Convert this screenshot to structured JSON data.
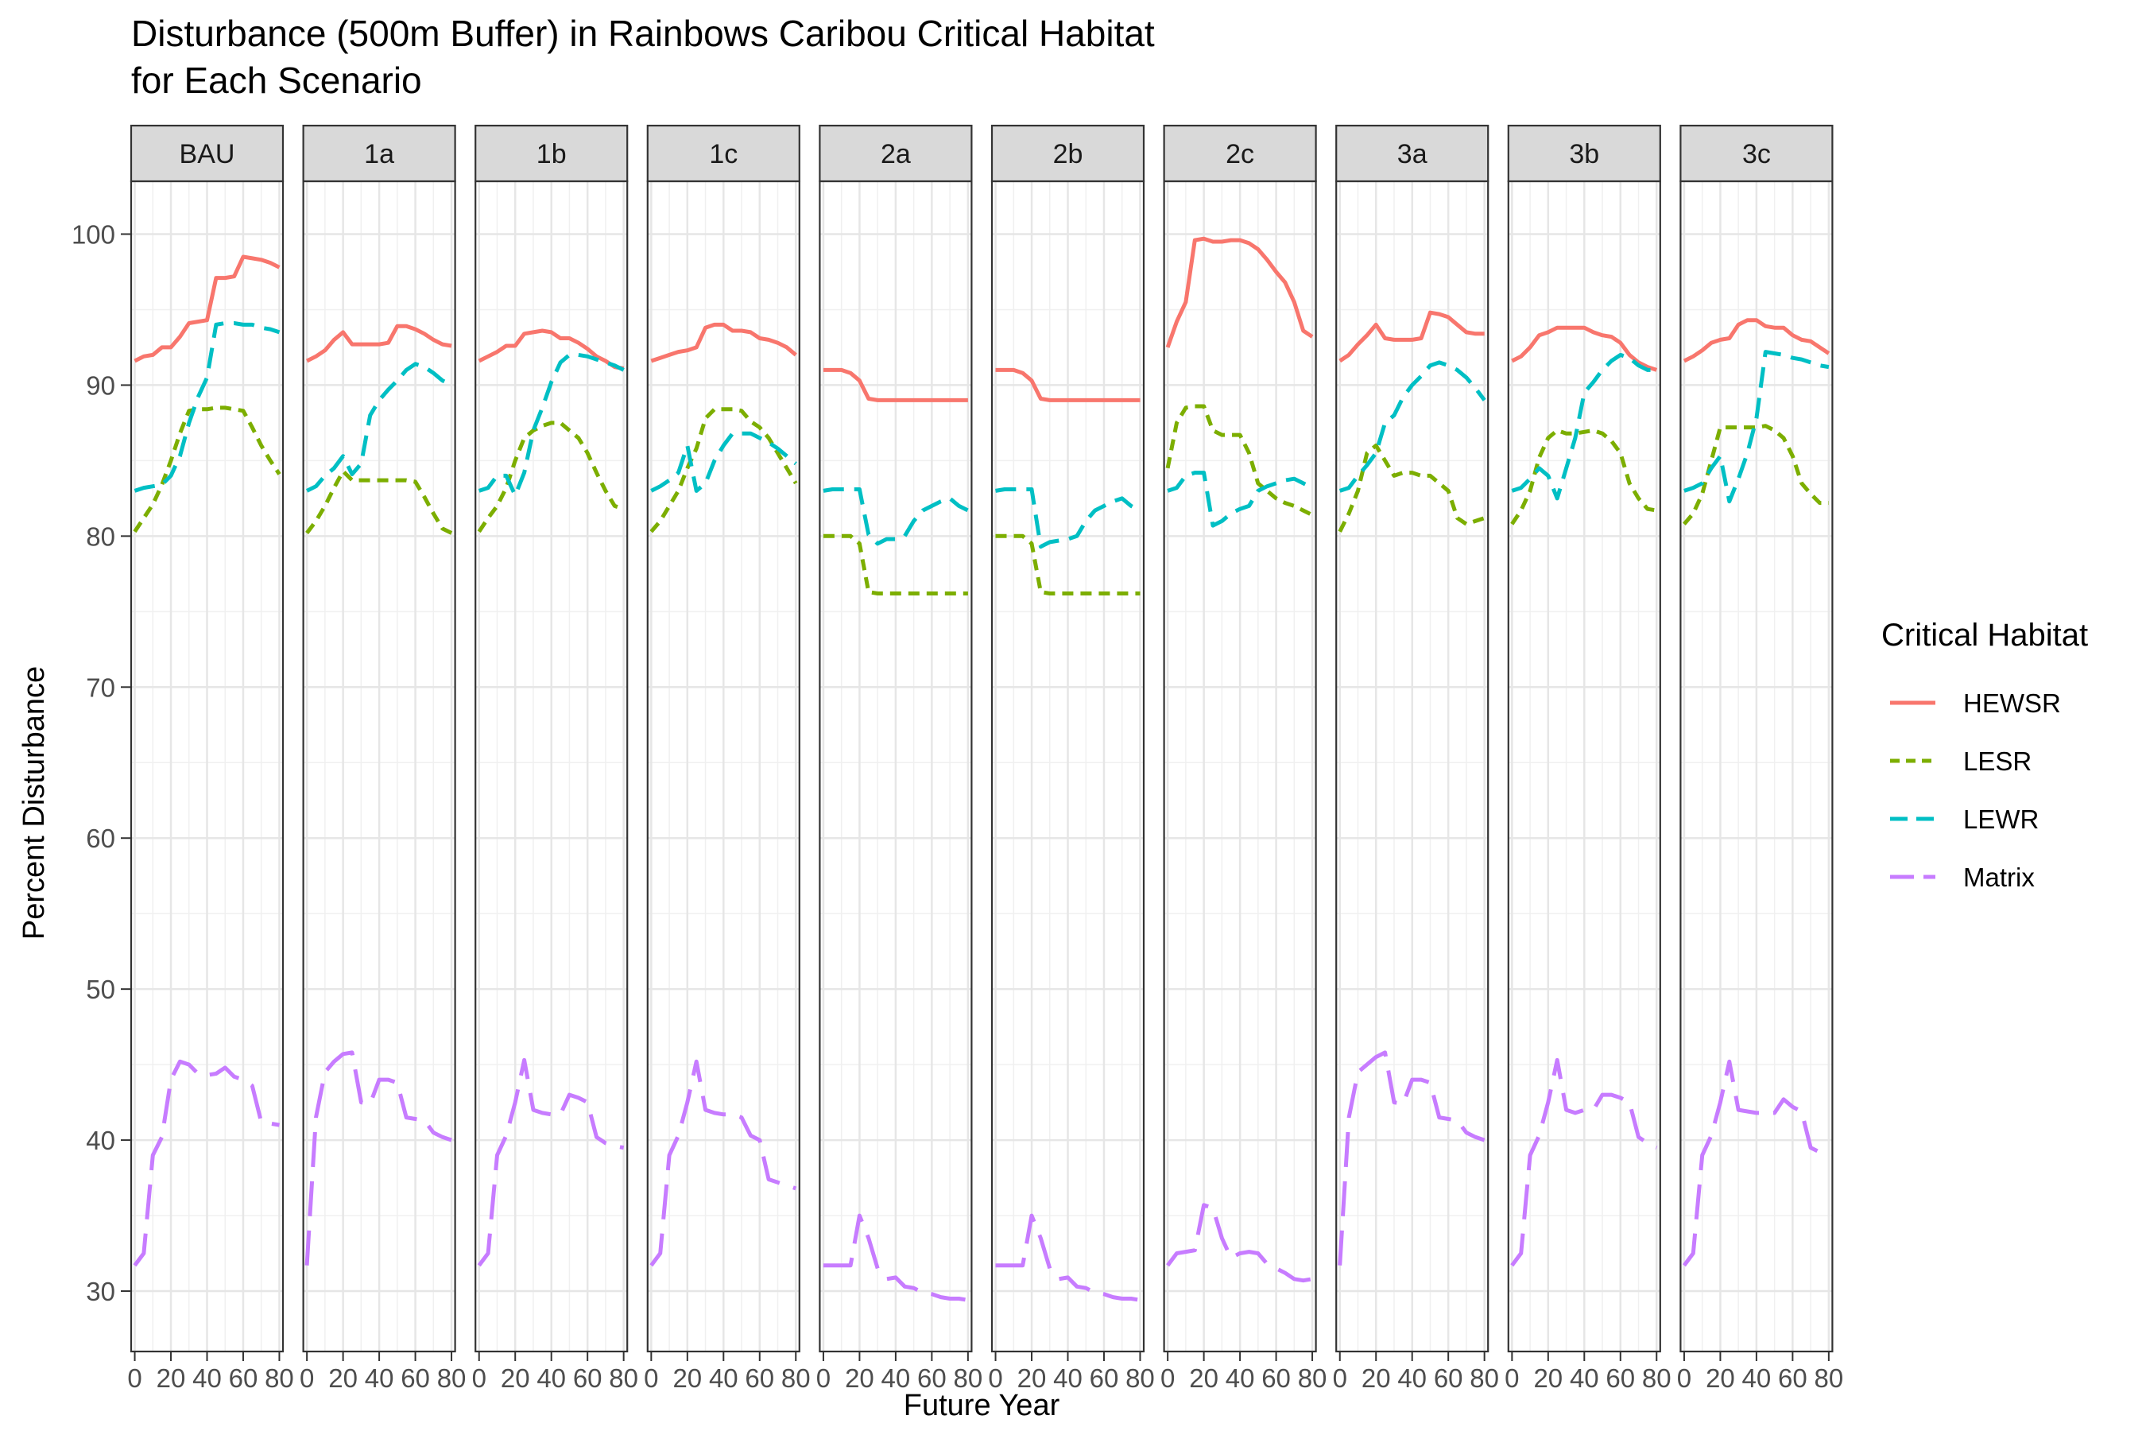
{
  "chart_data": {
    "type": "line",
    "title": "Disturbance (500m Buffer) in Rainbows Caribou Critical Habitat",
    "subtitle": "for Each Scenario",
    "xlabel": "Future Year",
    "ylabel": "Percent Disturbance",
    "xlim": [
      -2,
      82
    ],
    "ylim": [
      26,
      103.5
    ],
    "xticks": [
      0,
      20,
      40,
      60,
      80
    ],
    "yticks": [
      30,
      40,
      50,
      60,
      70,
      80,
      90,
      100
    ],
    "grid": true,
    "legend": {
      "title": "Critical Habitat",
      "position": "right",
      "entries": [
        {
          "name": "HEWSR",
          "color": "#F8766D",
          "dash": "solid"
        },
        {
          "name": "LESR",
          "color": "#7CAE00",
          "dash": "dotted"
        },
        {
          "name": "LEWR",
          "color": "#00BFC4",
          "dash": "dashed"
        },
        {
          "name": "Matrix",
          "color": "#C77CFF",
          "dash": "longdash"
        }
      ]
    },
    "x": [
      0,
      5,
      10,
      15,
      20,
      25,
      30,
      35,
      40,
      45,
      50,
      55,
      60,
      65,
      70,
      75,
      80
    ],
    "panels": [
      {
        "name": "BAU",
        "series": [
          {
            "name": "HEWSR",
            "values": [
              91.6,
              91.9,
              92.0,
              92.5,
              92.5,
              93.2,
              94.1,
              94.2,
              94.3,
              97.1,
              97.1,
              97.2,
              98.5,
              98.4,
              98.3,
              98.1,
              97.8
            ]
          },
          {
            "name": "LESR",
            "values": [
              80.3,
              81.2,
              82.1,
              83.4,
              85.0,
              86.8,
              88.3,
              88.4,
              88.4,
              88.5,
              88.5,
              88.4,
              88.3,
              87.2,
              86.0,
              85.0,
              84.1
            ]
          },
          {
            "name": "LEWR",
            "values": [
              83.0,
              83.2,
              83.3,
              83.4,
              84.0,
              85.3,
              87.5,
              89.2,
              90.5,
              94.0,
              94.1,
              94.1,
              94.0,
              94.0,
              93.8,
              93.7,
              93.5
            ]
          },
          {
            "name": "Matrix",
            "values": [
              31.7,
              32.5,
              39.0,
              40.2,
              44.0,
              45.2,
              45.0,
              44.4,
              44.3,
              44.4,
              44.8,
              44.2,
              44.0,
              43.6,
              41.2,
              41.1,
              41.0
            ]
          }
        ]
      },
      {
        "name": "1a",
        "series": [
          {
            "name": "HEWSR",
            "values": [
              91.6,
              91.9,
              92.3,
              93.0,
              93.5,
              92.7,
              92.7,
              92.7,
              92.7,
              92.8,
              93.9,
              93.9,
              93.7,
              93.4,
              93.0,
              92.7,
              92.6
            ]
          },
          {
            "name": "LESR",
            "values": [
              80.2,
              81.0,
              82.0,
              83.2,
              84.3,
              83.7,
              83.7,
              83.7,
              83.7,
              83.7,
              83.7,
              83.7,
              83.6,
              82.6,
              81.5,
              80.5,
              80.2
            ]
          },
          {
            "name": "LEWR",
            "values": [
              83.0,
              83.3,
              84.0,
              84.5,
              85.3,
              84.1,
              84.8,
              88.0,
              89.0,
              89.7,
              90.3,
              91.0,
              91.4,
              91.2,
              90.8,
              90.3,
              90.0
            ]
          },
          {
            "name": "Matrix",
            "values": [
              31.7,
              41.5,
              44.5,
              45.2,
              45.7,
              45.8,
              42.5,
              42.4,
              44.0,
              44.0,
              43.8,
              41.5,
              41.4,
              41.3,
              40.5,
              40.2,
              40.0
            ]
          }
        ]
      },
      {
        "name": "1b",
        "series": [
          {
            "name": "HEWSR",
            "values": [
              91.6,
              91.9,
              92.2,
              92.6,
              92.6,
              93.4,
              93.5,
              93.6,
              93.5,
              93.1,
              93.1,
              92.8,
              92.4,
              91.9,
              91.6,
              91.2,
              91.1
            ]
          },
          {
            "name": "LESR",
            "values": [
              80.3,
              81.2,
              82.0,
              83.2,
              85.0,
              86.5,
              87.0,
              87.3,
              87.5,
              87.5,
              87.0,
              86.5,
              85.5,
              84.2,
              83.0,
              82.0,
              81.8
            ]
          },
          {
            "name": "LEWR",
            "values": [
              83.0,
              83.2,
              84.0,
              84.0,
              82.7,
              84.2,
              87.0,
              88.5,
              90.2,
              91.5,
              92.0,
              92.0,
              91.9,
              91.7,
              91.5,
              91.3,
              91.0
            ]
          },
          {
            "name": "Matrix",
            "values": [
              31.7,
              32.5,
              39.0,
              40.3,
              42.5,
              45.3,
              42.0,
              41.8,
              41.7,
              41.7,
              43.0,
              42.8,
              42.5,
              40.2,
              39.8,
              39.6,
              39.5
            ]
          }
        ]
      },
      {
        "name": "1c",
        "series": [
          {
            "name": "HEWSR",
            "values": [
              91.6,
              91.8,
              92.0,
              92.2,
              92.3,
              92.5,
              93.8,
              94.0,
              94.0,
              93.6,
              93.6,
              93.5,
              93.1,
              93.0,
              92.8,
              92.5,
              92.0
            ]
          },
          {
            "name": "LESR",
            "values": [
              80.3,
              81.0,
              82.0,
              83.0,
              84.5,
              85.8,
              87.8,
              88.4,
              88.4,
              88.4,
              88.3,
              87.6,
              87.2,
              86.5,
              85.5,
              84.5,
              83.5
            ]
          },
          {
            "name": "LEWR",
            "values": [
              83.0,
              83.3,
              83.7,
              84.2,
              86.0,
              83.0,
              83.5,
              85.0,
              86.0,
              86.8,
              86.8,
              86.8,
              86.5,
              86.2,
              85.8,
              85.3,
              84.8
            ]
          },
          {
            "name": "Matrix",
            "values": [
              31.7,
              32.5,
              39.0,
              40.3,
              42.5,
              45.2,
              42.0,
              41.8,
              41.7,
              41.7,
              41.5,
              40.3,
              40.0,
              37.4,
              37.2,
              37.0,
              36.8
            ]
          }
        ]
      },
      {
        "name": "2a",
        "series": [
          {
            "name": "HEWSR",
            "values": [
              91.0,
              91.0,
              91.0,
              90.8,
              90.3,
              89.1,
              89.0,
              89.0,
              89.0,
              89.0,
              89.0,
              89.0,
              89.0,
              89.0,
              89.0,
              89.0,
              89.0
            ]
          },
          {
            "name": "LESR",
            "values": [
              80.0,
              80.0,
              80.0,
              80.0,
              79.5,
              76.3,
              76.2,
              76.2,
              76.2,
              76.2,
              76.2,
              76.2,
              76.2,
              76.2,
              76.2,
              76.2,
              76.2
            ]
          },
          {
            "name": "LEWR",
            "values": [
              83.0,
              83.1,
              83.1,
              83.1,
              83.1,
              80.1,
              79.5,
              79.8,
              79.8,
              80.0,
              81.0,
              81.7,
              82.0,
              82.3,
              82.5,
              82.0,
              81.7
            ]
          },
          {
            "name": "Matrix",
            "values": [
              31.7,
              31.7,
              31.7,
              31.7,
              35.0,
              33.5,
              31.5,
              30.8,
              30.9,
              30.3,
              30.2,
              29.9,
              29.8,
              29.6,
              29.5,
              29.5,
              29.4
            ]
          }
        ]
      },
      {
        "name": "2b",
        "series": [
          {
            "name": "HEWSR",
            "values": [
              91.0,
              91.0,
              91.0,
              90.8,
              90.3,
              89.1,
              89.0,
              89.0,
              89.0,
              89.0,
              89.0,
              89.0,
              89.0,
              89.0,
              89.0,
              89.0,
              89.0
            ]
          },
          {
            "name": "LESR",
            "values": [
              80.0,
              80.0,
              80.0,
              80.0,
              79.5,
              76.3,
              76.2,
              76.2,
              76.2,
              76.2,
              76.2,
              76.2,
              76.2,
              76.2,
              76.2,
              76.2,
              76.2
            ]
          },
          {
            "name": "LEWR",
            "values": [
              83.0,
              83.1,
              83.1,
              83.1,
              83.1,
              79.3,
              79.6,
              79.7,
              79.8,
              80.0,
              81.0,
              81.7,
              82.0,
              82.3,
              82.5,
              82.0,
              81.7
            ]
          },
          {
            "name": "Matrix",
            "values": [
              31.7,
              31.7,
              31.7,
              31.7,
              35.0,
              33.5,
              31.5,
              30.8,
              30.9,
              30.3,
              30.2,
              29.9,
              29.8,
              29.6,
              29.5,
              29.5,
              29.4
            ]
          }
        ]
      },
      {
        "name": "2c",
        "series": [
          {
            "name": "HEWSR",
            "values": [
              92.5,
              94.2,
              95.5,
              99.6,
              99.7,
              99.5,
              99.5,
              99.6,
              99.6,
              99.4,
              99.0,
              98.3,
              97.5,
              96.8,
              95.5,
              93.6,
              93.2
            ]
          },
          {
            "name": "LESR",
            "values": [
              84.5,
              87.5,
              88.5,
              88.6,
              88.6,
              87.0,
              86.7,
              86.7,
              86.7,
              85.5,
              83.5,
              83.0,
              82.5,
              82.2,
              82.0,
              81.7,
              81.4
            ]
          },
          {
            "name": "LEWR",
            "values": [
              83.0,
              83.2,
              84.0,
              84.2,
              84.2,
              80.7,
              81.0,
              81.5,
              81.8,
              82.0,
              83.0,
              83.3,
              83.5,
              83.7,
              83.8,
              83.5,
              83.2
            ]
          },
          {
            "name": "Matrix",
            "values": [
              31.7,
              32.5,
              32.6,
              32.7,
              35.7,
              35.5,
              33.5,
              32.2,
              32.5,
              32.6,
              32.5,
              31.8,
              31.5,
              31.2,
              30.8,
              30.7,
              30.8
            ]
          }
        ]
      },
      {
        "name": "3a",
        "series": [
          {
            "name": "HEWSR",
            "values": [
              91.6,
              92.0,
              92.7,
              93.3,
              94.0,
              93.1,
              93.0,
              93.0,
              93.0,
              93.1,
              94.8,
              94.7,
              94.5,
              94.0,
              93.5,
              93.4,
              93.4
            ]
          },
          {
            "name": "LESR",
            "values": [
              80.3,
              81.5,
              83.0,
              85.5,
              86.0,
              85.0,
              84.0,
              84.2,
              84.2,
              84.0,
              84.0,
              83.5,
              83.0,
              81.2,
              80.8,
              81.0,
              81.2
            ]
          },
          {
            "name": "LEWR",
            "values": [
              83.0,
              83.2,
              84.0,
              84.7,
              85.5,
              87.5,
              88.0,
              89.2,
              90.0,
              90.6,
              91.3,
              91.5,
              91.3,
              91.0,
              90.5,
              89.8,
              89.0
            ]
          },
          {
            "name": "Matrix",
            "values": [
              31.7,
              41.5,
              44.5,
              45.0,
              45.5,
              45.8,
              42.5,
              42.4,
              44.0,
              44.0,
              43.8,
              41.5,
              41.4,
              41.3,
              40.5,
              40.2,
              40.0
            ]
          }
        ]
      },
      {
        "name": "3b",
        "series": [
          {
            "name": "HEWSR",
            "values": [
              91.6,
              91.9,
              92.5,
              93.3,
              93.5,
              93.8,
              93.8,
              93.8,
              93.8,
              93.5,
              93.3,
              93.2,
              92.8,
              92.0,
              91.5,
              91.2,
              91.0
            ]
          },
          {
            "name": "LESR",
            "values": [
              80.8,
              81.7,
              83.0,
              85.2,
              86.5,
              87.0,
              86.8,
              86.8,
              86.9,
              87.0,
              86.8,
              86.3,
              85.5,
              83.5,
              82.5,
              81.8,
              81.7
            ]
          },
          {
            "name": "LEWR",
            "values": [
              83.0,
              83.2,
              83.8,
              84.5,
              84.0,
              82.5,
              84.5,
              86.5,
              89.5,
              90.2,
              91.0,
              91.6,
              92.0,
              91.8,
              91.3,
              91.0,
              91.0
            ]
          },
          {
            "name": "Matrix",
            "values": [
              31.7,
              32.5,
              39.0,
              40.3,
              42.5,
              45.3,
              42.0,
              41.8,
              42.0,
              42.0,
              43.0,
              43.0,
              42.8,
              42.5,
              40.2,
              39.8,
              39.5
            ]
          }
        ]
      },
      {
        "name": "3c",
        "series": [
          {
            "name": "HEWSR",
            "values": [
              91.6,
              91.9,
              92.3,
              92.8,
              93.0,
              93.1,
              94.0,
              94.3,
              94.3,
              93.9,
              93.8,
              93.8,
              93.3,
              93.0,
              92.9,
              92.5,
              92.1
            ]
          },
          {
            "name": "LESR",
            "values": [
              80.8,
              81.5,
              82.8,
              85.0,
              87.2,
              87.2,
              87.2,
              87.2,
              87.2,
              87.3,
              87.0,
              86.5,
              85.3,
              83.5,
              82.8,
              82.2,
              82.2
            ]
          },
          {
            "name": "LEWR",
            "values": [
              83.0,
              83.2,
              83.5,
              84.5,
              85.3,
              82.3,
              83.8,
              85.5,
              87.8,
              92.2,
              92.1,
              92.0,
              91.8,
              91.7,
              91.5,
              91.3,
              91.2
            ]
          },
          {
            "name": "Matrix",
            "values": [
              31.7,
              32.5,
              39.0,
              40.3,
              42.5,
              45.2,
              42.0,
              41.9,
              41.8,
              41.8,
              41.8,
              42.7,
              42.2,
              41.9,
              39.5,
              39.2,
              39.0
            ]
          }
        ]
      }
    ]
  }
}
